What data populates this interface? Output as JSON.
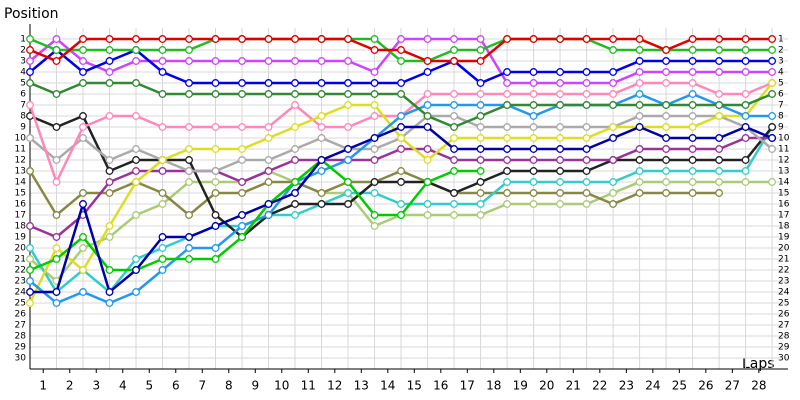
{
  "chart_data": {
    "type": "line",
    "y_label": "Position",
    "x_label": "Laps",
    "x": [
      0,
      1,
      2,
      3,
      4,
      5,
      6,
      7,
      8,
      9,
      10,
      11,
      12,
      13,
      14,
      15,
      16,
      17,
      18,
      19,
      20,
      21,
      22,
      23,
      24,
      25,
      26,
      27,
      28
    ],
    "xlim": [
      0,
      28.6
    ],
    "ylim": [
      0,
      31
    ],
    "y_inverted": true,
    "grid": true,
    "xticks": [
      {
        "value": 0.5,
        "label": "1"
      },
      {
        "value": 1.5,
        "label": "2"
      },
      {
        "value": 2.5,
        "label": "3"
      },
      {
        "value": 3.5,
        "label": "4"
      },
      {
        "value": 4.5,
        "label": "5"
      },
      {
        "value": 5.5,
        "label": "6"
      },
      {
        "value": 6.5,
        "label": "7"
      },
      {
        "value": 7.5,
        "label": "8"
      },
      {
        "value": 8.5,
        "label": "9"
      },
      {
        "value": 9.5,
        "label": "10"
      },
      {
        "value": 10.5,
        "label": "11"
      },
      {
        "value": 11.5,
        "label": "12"
      },
      {
        "value": 12.5,
        "label": "13"
      },
      {
        "value": 13.5,
        "label": "14"
      },
      {
        "value": 14.5,
        "label": "15"
      },
      {
        "value": 15.5,
        "label": "16"
      },
      {
        "value": 16.5,
        "label": "17"
      },
      {
        "value": 17.5,
        "label": "18"
      },
      {
        "value": 18.5,
        "label": "19"
      },
      {
        "value": 19.5,
        "label": "20"
      },
      {
        "value": 20.5,
        "label": "21"
      },
      {
        "value": 21.5,
        "label": "22"
      },
      {
        "value": 22.5,
        "label": "23"
      },
      {
        "value": 23.5,
        "label": "24"
      },
      {
        "value": 24.5,
        "label": "25"
      },
      {
        "value": 25.5,
        "label": "26"
      },
      {
        "value": 26.5,
        "label": "27"
      },
      {
        "value": 27.5,
        "label": "28"
      }
    ],
    "yticks": [
      1,
      2,
      3,
      4,
      5,
      6,
      7,
      8,
      9,
      10,
      11,
      12,
      13,
      14,
      15,
      16,
      17,
      18,
      19,
      20,
      21,
      22,
      23,
      24,
      25,
      26,
      27,
      28,
      29,
      30
    ],
    "series": [
      {
        "color": "#aacc77",
        "values": [
          21,
          23,
          20,
          19,
          17,
          16,
          14,
          14,
          14,
          13,
          14,
          15,
          15,
          18,
          17,
          17,
          17,
          17,
          16,
          16,
          16,
          16,
          15,
          14,
          14,
          14,
          14,
          14,
          14
        ]
      },
      {
        "color": "#888844",
        "values": [
          13,
          17,
          15,
          15,
          14,
          15,
          17,
          15,
          15,
          14,
          14,
          15,
          14,
          14,
          13,
          14,
          15,
          15,
          15,
          15,
          15,
          15,
          16,
          15,
          15,
          15,
          15,
          null,
          null
        ]
      },
      {
        "color": "#33cccc",
        "values": [
          20,
          24,
          22,
          24,
          21,
          20,
          19,
          18,
          18,
          17,
          17,
          16,
          15,
          15,
          16,
          16,
          16,
          16,
          14,
          14,
          14,
          14,
          14,
          13,
          13,
          13,
          13,
          13,
          9
        ]
      },
      {
        "color": "#222222",
        "values": [
          8,
          9,
          8,
          13,
          12,
          12,
          12,
          17,
          19,
          17,
          16,
          16,
          16,
          14,
          14,
          14,
          15,
          14,
          13,
          13,
          13,
          13,
          12,
          12,
          12,
          12,
          12,
          12,
          9
        ]
      },
      {
        "color": "#993399",
        "values": [
          18,
          19,
          17,
          14,
          13,
          13,
          13,
          13,
          14,
          13,
          12,
          12,
          12,
          12,
          11,
          11,
          12,
          12,
          12,
          12,
          12,
          12,
          12,
          11,
          11,
          11,
          11,
          10,
          10
        ]
      },
      {
        "color": "#aaaaaa",
        "values": [
          10,
          12,
          10,
          12,
          11,
          12,
          13,
          13,
          12,
          12,
          11,
          10,
          11,
          11,
          10,
          8,
          8,
          9,
          9,
          9,
          9,
          9,
          9,
          8,
          8,
          8,
          8,
          9,
          11
        ]
      },
      {
        "color": "#ff88bb",
        "values": [
          7,
          14,
          9,
          8,
          8,
          9,
          9,
          9,
          9,
          9,
          7,
          9,
          9,
          8,
          8,
          6,
          6,
          6,
          6,
          6,
          6,
          6,
          6,
          5,
          5,
          5,
          6,
          6,
          5
        ]
      },
      {
        "color": "#dddd22",
        "values": [
          25,
          20,
          22,
          18,
          14,
          12,
          11,
          11,
          11,
          10,
          9,
          8,
          7,
          7,
          10,
          12,
          10,
          10,
          10,
          10,
          10,
          10,
          9,
          9,
          9,
          9,
          8,
          8,
          5
        ]
      },
      {
        "color": "#2299ee",
        "values": [
          23,
          25,
          24,
          25,
          24,
          22,
          20,
          20,
          18,
          17,
          14,
          13,
          12,
          10,
          8,
          7,
          7,
          7,
          7,
          8,
          7,
          7,
          7,
          6,
          7,
          6,
          7,
          8,
          8
        ]
      },
      {
        "color": "#00cc00",
        "values": [
          22,
          21,
          19,
          22,
          22,
          21,
          21,
          21,
          19,
          16,
          14,
          12,
          14,
          17,
          17,
          14,
          13,
          13,
          null,
          null,
          null,
          null,
          null,
          null,
          null,
          null,
          null,
          null,
          null
        ]
      },
      {
        "color": "#0000aa",
        "values": [
          24,
          24,
          16,
          24,
          22,
          19,
          19,
          18,
          17,
          16,
          15,
          12,
          11,
          10,
          9,
          9,
          11,
          11,
          11,
          11,
          11,
          11,
          10,
          9,
          10,
          10,
          10,
          9,
          10
        ]
      },
      {
        "color": "#338833",
        "values": [
          5,
          6,
          5,
          5,
          5,
          6,
          6,
          6,
          6,
          6,
          6,
          6,
          6,
          6,
          6,
          8,
          9,
          8,
          7,
          7,
          7,
          7,
          7,
          7,
          7,
          7,
          7,
          7,
          6
        ]
      },
      {
        "color": "#cc44ff",
        "values": [
          3,
          1,
          3,
          4,
          3,
          3,
          3,
          3,
          3,
          3,
          3,
          3,
          3,
          4,
          1,
          1,
          1,
          1,
          5,
          5,
          5,
          5,
          5,
          4,
          4,
          4,
          4,
          4,
          4
        ]
      },
      {
        "color": "#0000ee",
        "values": [
          4,
          2,
          4,
          3,
          2,
          4,
          5,
          5,
          5,
          5,
          5,
          5,
          5,
          5,
          5,
          4,
          3,
          5,
          4,
          4,
          4,
          4,
          4,
          3,
          3,
          3,
          3,
          3,
          3
        ]
      },
      {
        "color": "#22bb22",
        "values": [
          1,
          2,
          2,
          2,
          2,
          2,
          2,
          1,
          1,
          1,
          1,
          1,
          1,
          1,
          3,
          3,
          2,
          2,
          1,
          1,
          1,
          1,
          2,
          2,
          2,
          2,
          2,
          2,
          2
        ]
      },
      {
        "color": "#e00000",
        "values": [
          2,
          3,
          1,
          1,
          1,
          1,
          1,
          1,
          1,
          1,
          1,
          1,
          1,
          2,
          2,
          3,
          3,
          3,
          1,
          1,
          1,
          1,
          1,
          1,
          2,
          1,
          1,
          1,
          1
        ]
      }
    ]
  }
}
